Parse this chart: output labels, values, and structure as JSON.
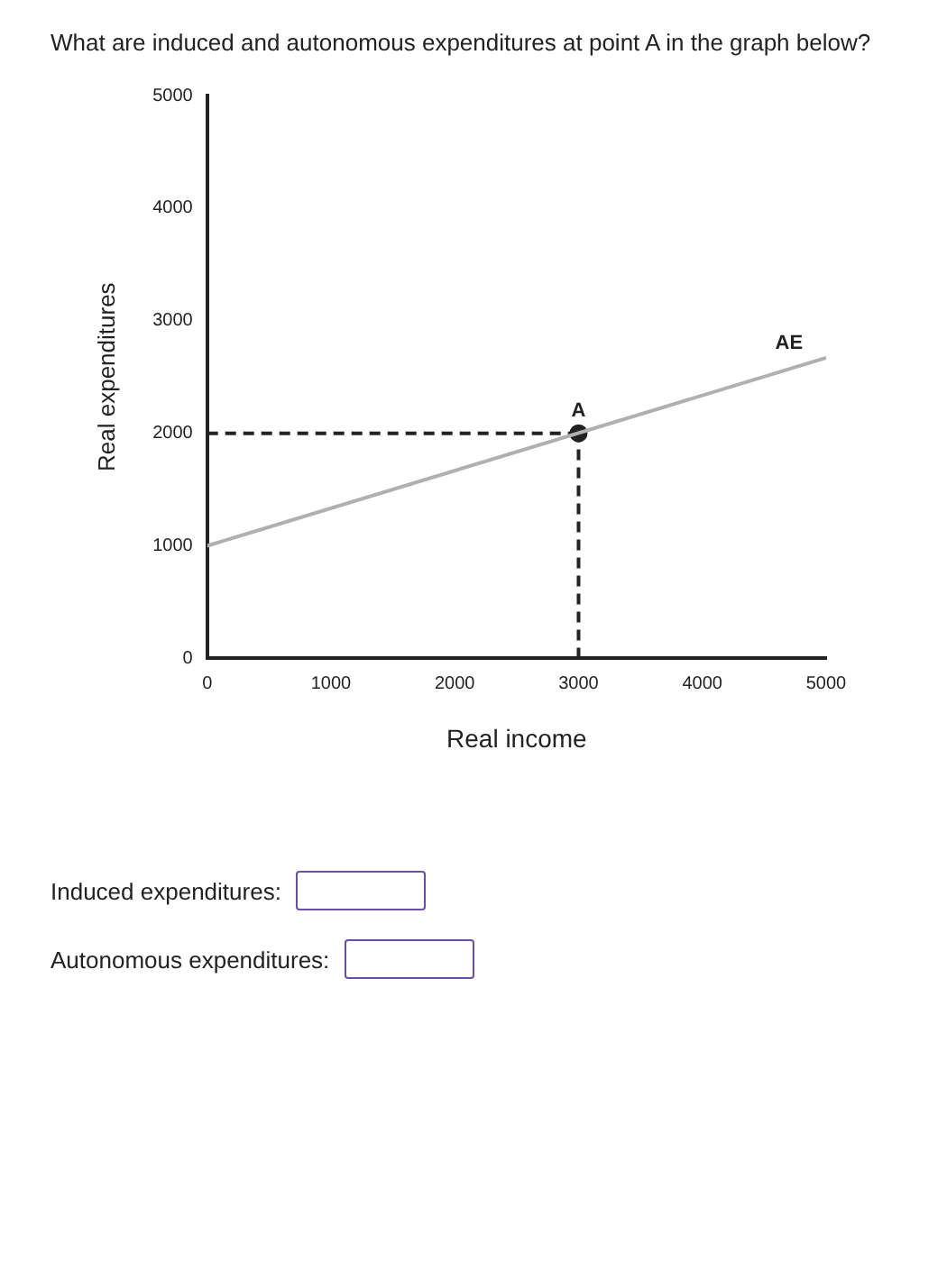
{
  "chart_data": {
    "type": "line",
    "title": "What are induced and autonomous expenditures at point A in the graph below?",
    "xlabel": "Real income",
    "ylabel": "Real expenditures",
    "xlim": [
      0,
      5000
    ],
    "xticks": [
      0,
      1000,
      2000,
      3000,
      4000,
      5000
    ],
    "ylim": [
      0,
      5000
    ],
    "yticks": [
      0,
      1000,
      2000,
      3000,
      4000,
      5000
    ],
    "grid": false,
    "legend": false,
    "series": [
      {
        "type": "line",
        "color": "#b0b0b0",
        "x": [
          0,
          5000
        ],
        "values": [
          1000,
          2670
        ],
        "marker": "none",
        "line_style": "solid"
      },
      {
        "type": "line",
        "color": "#222222",
        "x": [
          0,
          3000
        ],
        "values": [
          2000,
          2000
        ],
        "marker": "none",
        "line_style": "dashed"
      },
      {
        "type": "line",
        "color": "#222222",
        "x": [
          3000,
          3000
        ],
        "values": [
          0,
          2000
        ],
        "marker": "none",
        "line_style": "dashed"
      },
      {
        "type": "scatter",
        "color": "#222222",
        "x": [
          3000
        ],
        "values": [
          2000
        ],
        "marker": "circle"
      }
    ],
    "annotations": [
      {
        "text": "A",
        "x": 3000,
        "y": 2000
      },
      {
        "text": "AE",
        "x": 4700,
        "y": 2600
      },
      "Induced expenditures:",
      "Autonomous expenditures:"
    ]
  }
}
